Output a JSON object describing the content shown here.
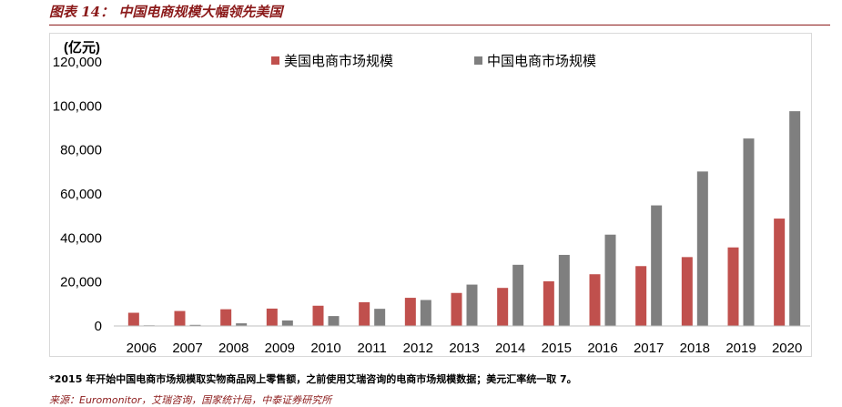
{
  "header": {
    "title": "图表 14：  中国电商规模大幅领先美国"
  },
  "footer": {
    "note": "*2015 年开始中国电商市场规模取实物商品网上零售额，之前使用艾瑞咨询的电商市场规模数据；美元汇率统一取 7。",
    "source": "来源：Euromonitor，艾瑞咨询，国家统计局，中泰证券研究所"
  },
  "chart_data": {
    "type": "bar",
    "unit_label": "(亿元)",
    "categories": [
      "2006",
      "2007",
      "2008",
      "2009",
      "2010",
      "2011",
      "2012",
      "2013",
      "2014",
      "2015",
      "2016",
      "2017",
      "2018",
      "2019",
      "2020"
    ],
    "series": [
      {
        "name": "美国电商市场规模",
        "color": "#c0504d",
        "values": [
          6000,
          6800,
          7600,
          7900,
          9200,
          10800,
          12800,
          15000,
          17300,
          20300,
          23500,
          27200,
          31300,
          35700,
          48800
        ]
      },
      {
        "name": "中国电商市场规模",
        "color": "#7f7f7f",
        "values": [
          300,
          500,
          1200,
          2500,
          4500,
          7800,
          11800,
          18800,
          27800,
          32300,
          41500,
          54800,
          70200,
          85200,
          97600
        ]
      }
    ],
    "yticks": [
      "0",
      "20,000",
      "40,000",
      "60,000",
      "80,000",
      "100,000",
      "120,000"
    ],
    "ylim": [
      0,
      120000
    ],
    "grid": false,
    "legend_position": "top"
  }
}
